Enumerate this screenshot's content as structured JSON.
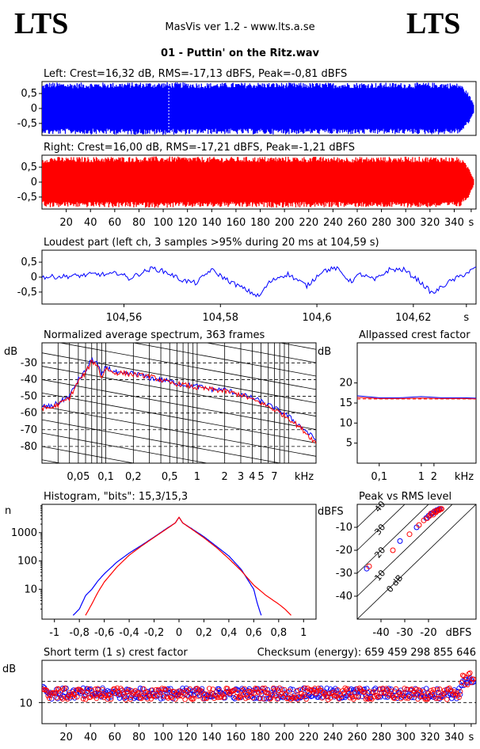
{
  "header": {
    "logo_left": "LTS",
    "logo_right": "LTS",
    "app_title": "MasVis ver 1.2 - www.lts.a.se",
    "track_title": "01 - Puttin' on the Ritz.wav"
  },
  "colors": {
    "left": "#0000ff",
    "right": "#ff0000",
    "grid": "#000000"
  },
  "chart_data": [
    {
      "type": "area",
      "id": "left_waveform",
      "title": "Left: Crest=16,32 dB, RMS=-17,13 dBFS, Peak=-0,81 dBFS",
      "channel": "left",
      "ylim": [
        -0.9,
        0.9
      ],
      "yticks": [
        "0,5",
        "0",
        "-0,5"
      ],
      "yticks_values": [
        0.5,
        0,
        -0.5
      ],
      "xlim": [
        0,
        358
      ],
      "marker_x": 104.59,
      "envelope_x": [
        0,
        5,
        20,
        60,
        100,
        140,
        180,
        220,
        260,
        300,
        330,
        345,
        352,
        356
      ],
      "envelope_peak": [
        0.8,
        0.88,
        0.86,
        0.87,
        0.88,
        0.86,
        0.87,
        0.86,
        0.87,
        0.86,
        0.87,
        0.84,
        0.5,
        0.15
      ]
    },
    {
      "type": "area",
      "id": "right_waveform",
      "title": "Right: Crest=16,00 dB, RMS=-17,21 dBFS, Peak=-1,21 dBFS",
      "channel": "right",
      "ylim": [
        -0.9,
        0.9
      ],
      "yticks": [
        "0,5",
        "0",
        "-0,5"
      ],
      "yticks_values": [
        0.5,
        0,
        -0.5
      ],
      "xlim": [
        0,
        358
      ],
      "xticks": [
        "20",
        "40",
        "60",
        "80",
        "100",
        "120",
        "140",
        "160",
        "180",
        "200",
        "220",
        "240",
        "260",
        "280",
        "300",
        "320",
        "340",
        "s"
      ],
      "xticks_values": [
        20,
        40,
        60,
        80,
        100,
        120,
        140,
        160,
        180,
        200,
        220,
        240,
        260,
        280,
        300,
        320,
        340,
        354
      ],
      "envelope_x": [
        0,
        5,
        20,
        60,
        100,
        140,
        180,
        220,
        260,
        300,
        330,
        345,
        352,
        356
      ],
      "envelope_peak": [
        0.78,
        0.85,
        0.84,
        0.85,
        0.86,
        0.84,
        0.85,
        0.85,
        0.84,
        0.85,
        0.85,
        0.83,
        0.5,
        0.12
      ]
    },
    {
      "type": "line",
      "id": "loudest_part",
      "title": "Loudest part (left  ch, 3 samples >95% during 20 ms at 104,59 s)",
      "channel": "left",
      "xlim": [
        104.543,
        104.633
      ],
      "ylim": [
        -0.9,
        0.9
      ],
      "xticks": [
        "104,56",
        "104,58",
        "104,6",
        "104,62",
        "s"
      ],
      "xticks_values": [
        104.56,
        104.58,
        104.6,
        104.62,
        104.631
      ],
      "yticks": [
        "0,5",
        "0",
        "-0,5"
      ],
      "yticks_values": [
        0.5,
        0,
        -0.5
      ],
      "x": [
        104.543,
        104.547,
        104.551,
        104.554,
        104.557,
        104.559,
        104.561,
        104.563,
        104.566,
        104.569,
        104.572,
        104.575,
        104.578,
        104.58,
        104.582,
        104.585,
        104.588,
        104.59,
        104.592,
        104.594,
        104.596,
        104.598,
        104.601,
        104.604,
        104.607,
        104.609,
        104.612,
        104.615,
        104.618,
        104.621,
        104.624,
        104.627,
        104.63,
        104.633
      ],
      "y": [
        0.0,
        0.02,
        0.05,
        0.1,
        0.08,
        0.15,
        -0.05,
        0.1,
        0.3,
        0.15,
        -0.1,
        -0.2,
        0.25,
        0.05,
        -0.15,
        -0.4,
        -0.65,
        -0.2,
        0.0,
        0.1,
        -0.1,
        -0.3,
        0.2,
        0.3,
        -0.15,
        0.1,
        -0.1,
        0.25,
        0.25,
        -0.1,
        -0.55,
        -0.2,
        0.05,
        0.3
      ]
    },
    {
      "type": "line",
      "id": "average_spectrum",
      "title": "Normalized average spectrum, 363 frames",
      "ylabel": "dB",
      "xlabel": "kHz",
      "scale": "log",
      "xlim": [
        0.02,
        20
      ],
      "ylim": [
        -90,
        -18
      ],
      "xticks": [
        "0,05",
        "0,1",
        "0,2",
        "0,5",
        "1",
        "2",
        "3",
        "4",
        "5",
        "7"
      ],
      "xticks_values": [
        0.05,
        0.1,
        0.2,
        0.5,
        1,
        2,
        3,
        4,
        5,
        7
      ],
      "yticks": [
        "-30",
        "-40",
        "-50",
        "-60",
        "-70",
        "-80"
      ],
      "yticks_values": [
        -30,
        -40,
        -50,
        -60,
        -70,
        -80
      ],
      "series": [
        {
          "channel": "left",
          "x": [
            0.02,
            0.025,
            0.03,
            0.04,
            0.05,
            0.06,
            0.07,
            0.08,
            0.09,
            0.1,
            0.12,
            0.15,
            0.2,
            0.3,
            0.5,
            0.7,
            1,
            1.5,
            2,
            3,
            4,
            5,
            7,
            10,
            15,
            20
          ],
          "y": [
            -56,
            -56,
            -54,
            -50,
            -40,
            -35,
            -28,
            -30,
            -38,
            -32,
            -35,
            -37,
            -36,
            -39,
            -41,
            -43,
            -44,
            -46,
            -46,
            -49,
            -51,
            -53,
            -57,
            -62,
            -70,
            -76
          ]
        },
        {
          "channel": "right",
          "x": [
            0.02,
            0.025,
            0.03,
            0.04,
            0.05,
            0.06,
            0.07,
            0.08,
            0.09,
            0.1,
            0.12,
            0.15,
            0.2,
            0.3,
            0.5,
            0.7,
            1,
            1.5,
            2,
            3,
            4,
            5,
            7,
            10,
            15,
            20
          ],
          "y": [
            -57,
            -57,
            -55,
            -51,
            -41,
            -36,
            -29,
            -31,
            -39,
            -33,
            -36,
            -36,
            -37,
            -38,
            -42,
            -43,
            -45,
            -46,
            -47,
            -49,
            -52,
            -54,
            -58,
            -63,
            -71,
            -78
          ]
        }
      ]
    },
    {
      "type": "line",
      "id": "allpassed_crest",
      "title": "Allpassed crest factor",
      "ylabel": "dB",
      "xlabel": "kHz",
      "scale": "log",
      "xlim": [
        0.03,
        20
      ],
      "ylim": [
        0,
        30
      ],
      "xticks": [
        "0,1",
        "1",
        "2"
      ],
      "xticks_values": [
        0.1,
        1,
        2
      ],
      "yticks": [
        "20",
        "15",
        "10",
        "5"
      ],
      "yticks_values": [
        20,
        15,
        10,
        5
      ],
      "reference_value": 16.0,
      "series": [
        {
          "channel": "left",
          "x": [
            0.03,
            0.1,
            0.3,
            1,
            3,
            10,
            20
          ],
          "y": [
            16.8,
            16.3,
            16.3,
            16.6,
            16.3,
            16.3,
            16.2
          ]
        },
        {
          "channel": "right",
          "x": [
            0.03,
            0.1,
            0.3,
            1,
            3,
            10,
            20
          ],
          "y": [
            16.4,
            16.1,
            16.1,
            16.2,
            16.1,
            16.1,
            16.0
          ]
        }
      ]
    },
    {
      "type": "line",
      "id": "histogram",
      "title": "Histogram, \"bits\": 15,3/15,3",
      "ylabel": "n",
      "scale": "log",
      "xlim": [
        -1.1,
        1.1
      ],
      "ylim": [
        1,
        10000
      ],
      "xticks": [
        "-1",
        "-0,8",
        "-0,6",
        "-0,4",
        "-0,2",
        "0",
        "0,2",
        "0,4",
        "0,6",
        "0,8",
        "1"
      ],
      "xticks_values": [
        -1,
        -0.8,
        -0.6,
        -0.4,
        -0.2,
        0,
        0.2,
        0.4,
        0.6,
        0.8,
        1
      ],
      "yticks": [
        "1000",
        "100",
        "10"
      ],
      "yticks_values": [
        1000,
        100,
        10
      ],
      "series": [
        {
          "channel": "left",
          "x": [
            -0.85,
            -0.8,
            -0.75,
            -0.7,
            -0.65,
            -0.6,
            -0.5,
            -0.4,
            -0.3,
            -0.2,
            -0.1,
            -0.03,
            0,
            0.03,
            0.1,
            0.2,
            0.3,
            0.4,
            0.5,
            0.6,
            0.63,
            0.66
          ],
          "y": [
            1.2,
            2,
            6,
            10,
            20,
            35,
            90,
            190,
            360,
            700,
            1400,
            2200,
            3500,
            2200,
            1400,
            720,
            330,
            150,
            50,
            10,
            3,
            1.2
          ]
        },
        {
          "channel": "right",
          "x": [
            -0.75,
            -0.7,
            -0.65,
            -0.6,
            -0.5,
            -0.4,
            -0.3,
            -0.2,
            -0.1,
            -0.03,
            0,
            0.03,
            0.1,
            0.2,
            0.3,
            0.4,
            0.5,
            0.6,
            0.7,
            0.8,
            0.85,
            0.9
          ],
          "y": [
            1.2,
            3,
            8,
            18,
            60,
            160,
            340,
            680,
            1350,
            2200,
            3500,
            2200,
            1350,
            660,
            300,
            120,
            45,
            14,
            6,
            3,
            2,
            1.2
          ]
        }
      ]
    },
    {
      "type": "scatter",
      "id": "peak_vs_rms",
      "title": "Peak vs RMS level",
      "ylabel": "dBFS",
      "xlabel": "dBFS",
      "xlim": [
        -50,
        0
      ],
      "ylim": [
        -50,
        0
      ],
      "xticks": [
        "-40",
        "-30",
        "-20"
      ],
      "xticks_values": [
        -40,
        -30,
        -20
      ],
      "yticks": [
        "-10",
        "-20",
        "-30",
        "-40"
      ],
      "yticks_values": [
        -10,
        -20,
        -30,
        -40
      ],
      "diagonal_labels": [
        "40",
        "30",
        "20",
        "10",
        "0 dB"
      ],
      "diagonal_offsets": [
        40,
        30,
        20,
        10,
        0
      ],
      "series": [
        {
          "channel": "left",
          "x": [
            -46,
            -32,
            -25,
            -21,
            -20,
            -19,
            -18.5,
            -18,
            -17.5,
            -17,
            -16.5,
            -16,
            -15.5,
            -15
          ],
          "y": [
            -28,
            -16,
            -10,
            -6,
            -5,
            -4,
            -4,
            -3.5,
            -3,
            -3.5,
            -2.5,
            -2.5,
            -2,
            -2
          ]
        },
        {
          "channel": "right",
          "x": [
            -45,
            -35,
            -28,
            -24,
            -22,
            -20.5,
            -19.5,
            -19,
            -18,
            -17.5,
            -17,
            -16.5,
            -16,
            -15.5,
            -15,
            -14.5
          ],
          "y": [
            -27,
            -20,
            -13,
            -9,
            -7,
            -6,
            -5,
            -4,
            -4.5,
            -3,
            -3.5,
            -3,
            -2.5,
            -2.5,
            -2,
            -2
          ]
        }
      ]
    },
    {
      "type": "scatter",
      "id": "short_term_crest",
      "title": "Short term (1 s) crest factor",
      "annotation": "Checksum (energy):   659 459 298 855 646",
      "ylabel": "dB",
      "xlim": [
        0,
        358
      ],
      "ylim": [
        0,
        30
      ],
      "reference_lines": [
        10,
        20
      ],
      "xticks": [
        "20",
        "40",
        "60",
        "80",
        "100",
        "120",
        "140",
        "160",
        "180",
        "200",
        "220",
        "240",
        "260",
        "280",
        "300",
        "320",
        "340",
        "s"
      ],
      "xticks_values": [
        20,
        40,
        60,
        80,
        100,
        120,
        140,
        160,
        180,
        200,
        220,
        240,
        260,
        280,
        300,
        320,
        340,
        354
      ],
      "yticks": [
        "10"
      ],
      "yticks_values": [
        10
      ],
      "series": [
        {
          "channel": "left",
          "mean": 14.3,
          "spread": 1.3,
          "start_value": 19,
          "end_value": 20
        },
        {
          "channel": "right",
          "mean": 14.1,
          "spread": 1.4,
          "start_value": 18,
          "end_value": 21
        }
      ]
    }
  ]
}
